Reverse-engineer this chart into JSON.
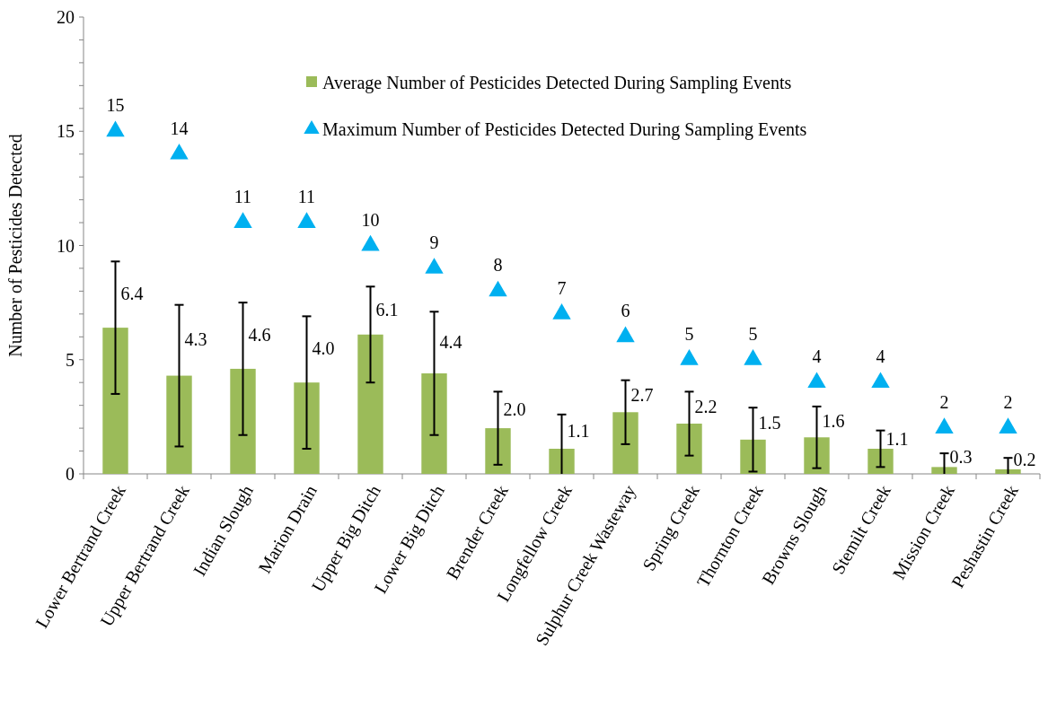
{
  "chart_data": {
    "type": "bar",
    "ylabel": "Number of Pesticides Detected",
    "categories": [
      "Lower Bertrand Creek",
      "Upper Bertrand Creek",
      "Indian Slough",
      "Marion Drain",
      "Upper Big Ditch",
      "Lower Big Ditch",
      "Brender Creek",
      "Longfellow Creek",
      "Sulphur Creek Wasteway",
      "Spring Creek",
      "Thornton Creek",
      "Browns Slough",
      "Stemilt Creek",
      "Mission Creek",
      "Peshastin Creek"
    ],
    "series": [
      {
        "name": "Average Number of Pesticides Detected During Sampling Events",
        "color": "#9bbb59",
        "values": [
          6.4,
          4.3,
          4.6,
          4.0,
          6.1,
          4.4,
          2.0,
          1.1,
          2.7,
          2.2,
          1.5,
          1.6,
          1.1,
          0.3,
          0.2
        ],
        "value_labels": [
          "6.4",
          "4.3",
          "4.6",
          "4.0",
          "6.1",
          "4.4",
          "2.0",
          "1.1",
          "2.7",
          "2.2",
          "1.5",
          "1.6",
          "1.1",
          "0.3",
          "0.2"
        ],
        "errors": [
          2.9,
          3.1,
          2.9,
          2.9,
          2.1,
          2.7,
          1.6,
          [
            0,
            2.6
          ],
          1.4,
          1.4,
          1.4,
          1.35,
          0.8,
          [
            0,
            0.9
          ],
          [
            0,
            0.7
          ]
        ]
      },
      {
        "name": "Maximum Number of Pesticides Detected During Sampling Events",
        "type": "scatter",
        "marker": "triangle",
        "color": "#00b0f0",
        "x": [
          "Lower Bertrand Creek",
          "Upper Bertrand Creek",
          "Indian Slough",
          "Marion Drain",
          "Upper Big Ditch",
          "Lower Big Ditch",
          "Brender Creek",
          "Longfellow Creek",
          "Sulphur Creek Wasteway",
          "Spring Creek",
          "Thornton Creek",
          "Browns Slough",
          "Stemilt Creek",
          "Mission Creek",
          "Peshastin Creek"
        ],
        "values": [
          15,
          14,
          11,
          11,
          10,
          9,
          8,
          7,
          6,
          5,
          5,
          4,
          4,
          2,
          2
        ],
        "value_labels": [
          "15",
          "14",
          "11",
          "11",
          "10",
          "9",
          "8",
          "7",
          "6",
          "5",
          "5",
          "4",
          "4",
          "2",
          "2"
        ]
      }
    ],
    "ylim": [
      0,
      20
    ],
    "yticks": [
      0,
      {
        "value": 1,
        "label": null
      },
      {
        "value": 2,
        "label": null
      },
      {
        "value": 3,
        "label": null
      },
      {
        "value": 4,
        "label": null
      },
      5,
      {
        "value": 6,
        "label": null
      },
      {
        "value": 7,
        "label": null
      },
      {
        "value": 8,
        "label": null
      },
      {
        "value": 9,
        "label": null
      },
      10,
      {
        "value": 11,
        "label": null
      },
      {
        "value": 12,
        "label": null
      },
      {
        "value": 13,
        "label": null
      },
      {
        "value": 14,
        "label": null
      },
      15,
      {
        "value": 16,
        "label": null
      },
      {
        "value": 17,
        "label": null
      },
      {
        "value": 18,
        "label": null
      },
      {
        "value": 19,
        "label": null
      },
      20
    ],
    "legend": "top right",
    "grid": false
  }
}
